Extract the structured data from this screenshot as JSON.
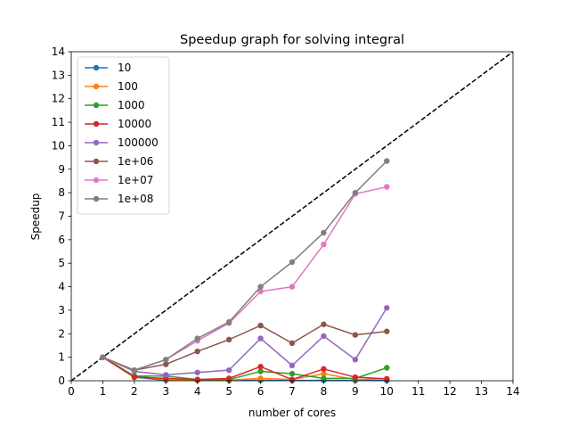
{
  "chart_data": {
    "type": "line",
    "title": "Speedup graph for solving integral",
    "xlabel": "number of cores",
    "ylabel": "Speedup",
    "xlim": [
      0,
      14
    ],
    "ylim": [
      0,
      14
    ],
    "xticks": [
      0,
      1,
      2,
      3,
      4,
      5,
      6,
      7,
      8,
      9,
      10,
      11,
      12,
      13,
      14
    ],
    "yticks": [
      0,
      1,
      2,
      3,
      4,
      5,
      6,
      7,
      8,
      9,
      10,
      11,
      12,
      13,
      14
    ],
    "legend_position": "top-left",
    "reference_line": {
      "style": "dashed",
      "color": "#000000",
      "x": [
        0,
        14
      ],
      "y": [
        0,
        14
      ]
    },
    "x": [
      1,
      2,
      3,
      4,
      5,
      6,
      7,
      8,
      9,
      10
    ],
    "series": [
      {
        "name": "10",
        "color": "#1f77b4",
        "values": [
          1.0,
          0.15,
          0.02,
          0.01,
          0.01,
          0.02,
          0.01,
          0.02,
          0.01,
          0.01
        ]
      },
      {
        "name": "100",
        "color": "#ff7f0e",
        "values": [
          1.0,
          0.2,
          0.05,
          0.02,
          0.03,
          0.1,
          0.05,
          0.3,
          0.05,
          0.08
        ]
      },
      {
        "name": "1000",
        "color": "#2ca02c",
        "values": [
          1.0,
          0.2,
          0.2,
          0.05,
          0.05,
          0.4,
          0.3,
          0.1,
          0.1,
          0.55
        ]
      },
      {
        "name": "10000",
        "color": "#d62728",
        "values": [
          1.0,
          0.15,
          0.1,
          0.05,
          0.1,
          0.6,
          0.05,
          0.5,
          0.15,
          0.08
        ]
      },
      {
        "name": "100000",
        "color": "#9467bd",
        "values": [
          1.0,
          0.4,
          0.25,
          0.35,
          0.45,
          1.8,
          0.65,
          1.9,
          0.9,
          3.1
        ]
      },
      {
        "name": "1e+06",
        "color": "#8c564b",
        "values": [
          1.0,
          0.45,
          0.7,
          1.25,
          1.75,
          2.35,
          1.6,
          2.4,
          1.95,
          2.1
        ]
      },
      {
        "name": "1e+07",
        "color": "#e377c2",
        "values": [
          1.0,
          0.45,
          0.9,
          1.7,
          2.45,
          3.8,
          4.0,
          5.8,
          7.95,
          8.25
        ]
      },
      {
        "name": "1e+08",
        "color": "#7f7f7f",
        "values": [
          1.0,
          0.45,
          0.9,
          1.8,
          2.5,
          4.0,
          5.05,
          6.3,
          8.0,
          9.35
        ]
      }
    ]
  }
}
